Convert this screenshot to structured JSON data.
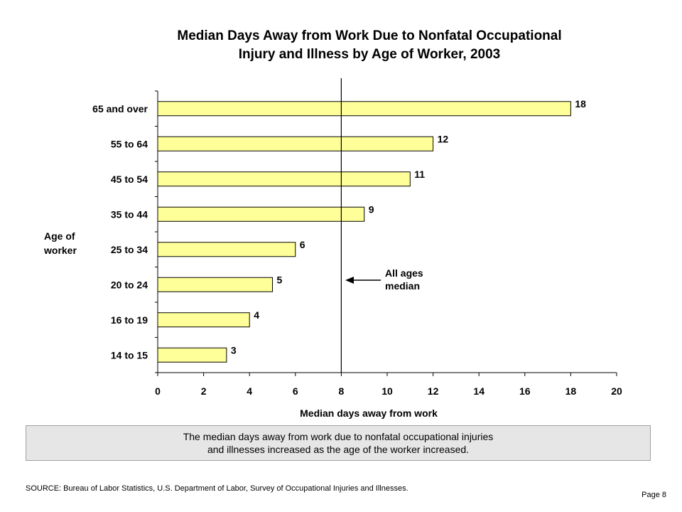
{
  "title_line1": "Median Days Away from Work Due to Nonfatal Occupational",
  "title_line2": "Injury and Illness by Age of Worker, 2003",
  "y_title_line1": "Age of",
  "y_title_line2": "worker",
  "median_label_line1": "All ages",
  "median_label_line2": "median",
  "note_line1": "The median days away from work due to nonfatal occupational injuries",
  "note_line2": "and illnesses increased as the age of the worker increased.",
  "source": "SOURCE:   Bureau of Labor Statistics, U.S. Department of Labor, Survey of Occupational Injuries and Illnesses.",
  "page_label": "Page 8",
  "chart_data": {
    "type": "bar",
    "orientation": "horizontal",
    "title": "Median Days Away from Work Due to Nonfatal Occupational Injury and Illness by Age of Worker, 2003",
    "xlabel": "Median days away from work",
    "ylabel": "Age of worker",
    "categories": [
      "65 and over",
      "55 to 64",
      "45 to 54",
      "35 to 44",
      "25 to 34",
      "20 to 24",
      "16 to 19",
      "14 to 15"
    ],
    "values": [
      18,
      12,
      11,
      9,
      6,
      5,
      4,
      3
    ],
    "xlim": [
      0,
      20
    ],
    "xticks": [
      0,
      2,
      4,
      6,
      8,
      10,
      12,
      14,
      16,
      18,
      20
    ],
    "reference_line": {
      "value": 8,
      "label": "All ages median"
    },
    "bar_color": "#ffff99",
    "bar_stroke": "#000000",
    "grid": false,
    "legend": "none"
  }
}
